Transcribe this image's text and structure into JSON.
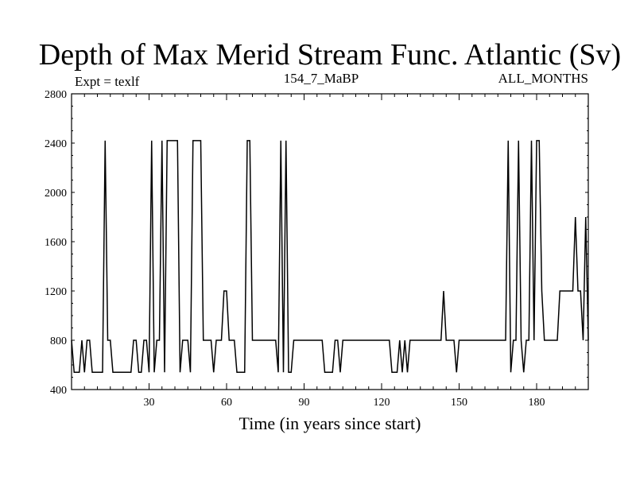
{
  "chart_data": {
    "type": "line",
    "title": "Depth of Max Merid Stream Func. Atlantic (Sv)",
    "left_label": "Expt = texlf",
    "center_label": "154_7_MaBP",
    "right_label": "ALL_MONTHS",
    "xlabel": "Time (in years since start)",
    "ylabel": "",
    "xlim": [
      0,
      200
    ],
    "ylim": [
      400,
      2800
    ],
    "xticks": [
      30,
      60,
      90,
      120,
      150,
      180
    ],
    "yticks": [
      400,
      800,
      1200,
      1600,
      2000,
      2400,
      2800
    ],
    "x_minor_step": 5,
    "y_minor_step": 100,
    "color": "#000000",
    "series": [
      {
        "values": [
          800,
          540,
          540,
          540,
          800,
          540,
          800,
          800,
          540,
          540,
          540,
          540,
          540,
          2420,
          800,
          800,
          540,
          540,
          540,
          540,
          540,
          540,
          540,
          540,
          800,
          800,
          540,
          540,
          800,
          800,
          540,
          2420,
          540,
          800,
          800,
          2420,
          540,
          2420,
          2420,
          2420,
          2420,
          2420,
          540,
          800,
          800,
          800,
          540,
          2420,
          2420,
          2420,
          2420,
          800,
          800,
          800,
          800,
          540,
          800,
          800,
          800,
          1200,
          1200,
          800,
          800,
          800,
          540,
          540,
          540,
          540,
          2420,
          2420,
          800,
          800,
          800,
          800,
          800,
          800,
          800,
          800,
          800,
          800,
          540,
          2420,
          540,
          2420,
          540,
          540,
          800,
          800,
          800,
          800,
          800,
          800,
          800,
          800,
          800,
          800,
          800,
          800,
          540,
          540,
          540,
          540,
          800,
          800,
          540,
          800,
          800,
          800,
          800,
          800,
          800,
          800,
          800,
          800,
          800,
          800,
          800,
          800,
          800,
          800,
          800,
          800,
          800,
          800,
          540,
          540,
          540,
          800,
          540,
          800,
          540,
          800,
          800,
          800,
          800,
          800,
          800,
          800,
          800,
          800,
          800,
          800,
          800,
          800,
          1200,
          800,
          800,
          800,
          800,
          540,
          800,
          800,
          800,
          800,
          800,
          800,
          800,
          800,
          800,
          800,
          800,
          800,
          800,
          800,
          800,
          800,
          800,
          800,
          800,
          2420,
          540,
          800,
          800,
          2420,
          800,
          540,
          800,
          800,
          2420,
          800,
          2420,
          2420,
          1200,
          800,
          800,
          800,
          800,
          800,
          800,
          1200,
          1200,
          1200,
          1200,
          1200,
          1200,
          1800,
          1200,
          1200,
          800,
          1800,
          800
        ]
      }
    ]
  }
}
